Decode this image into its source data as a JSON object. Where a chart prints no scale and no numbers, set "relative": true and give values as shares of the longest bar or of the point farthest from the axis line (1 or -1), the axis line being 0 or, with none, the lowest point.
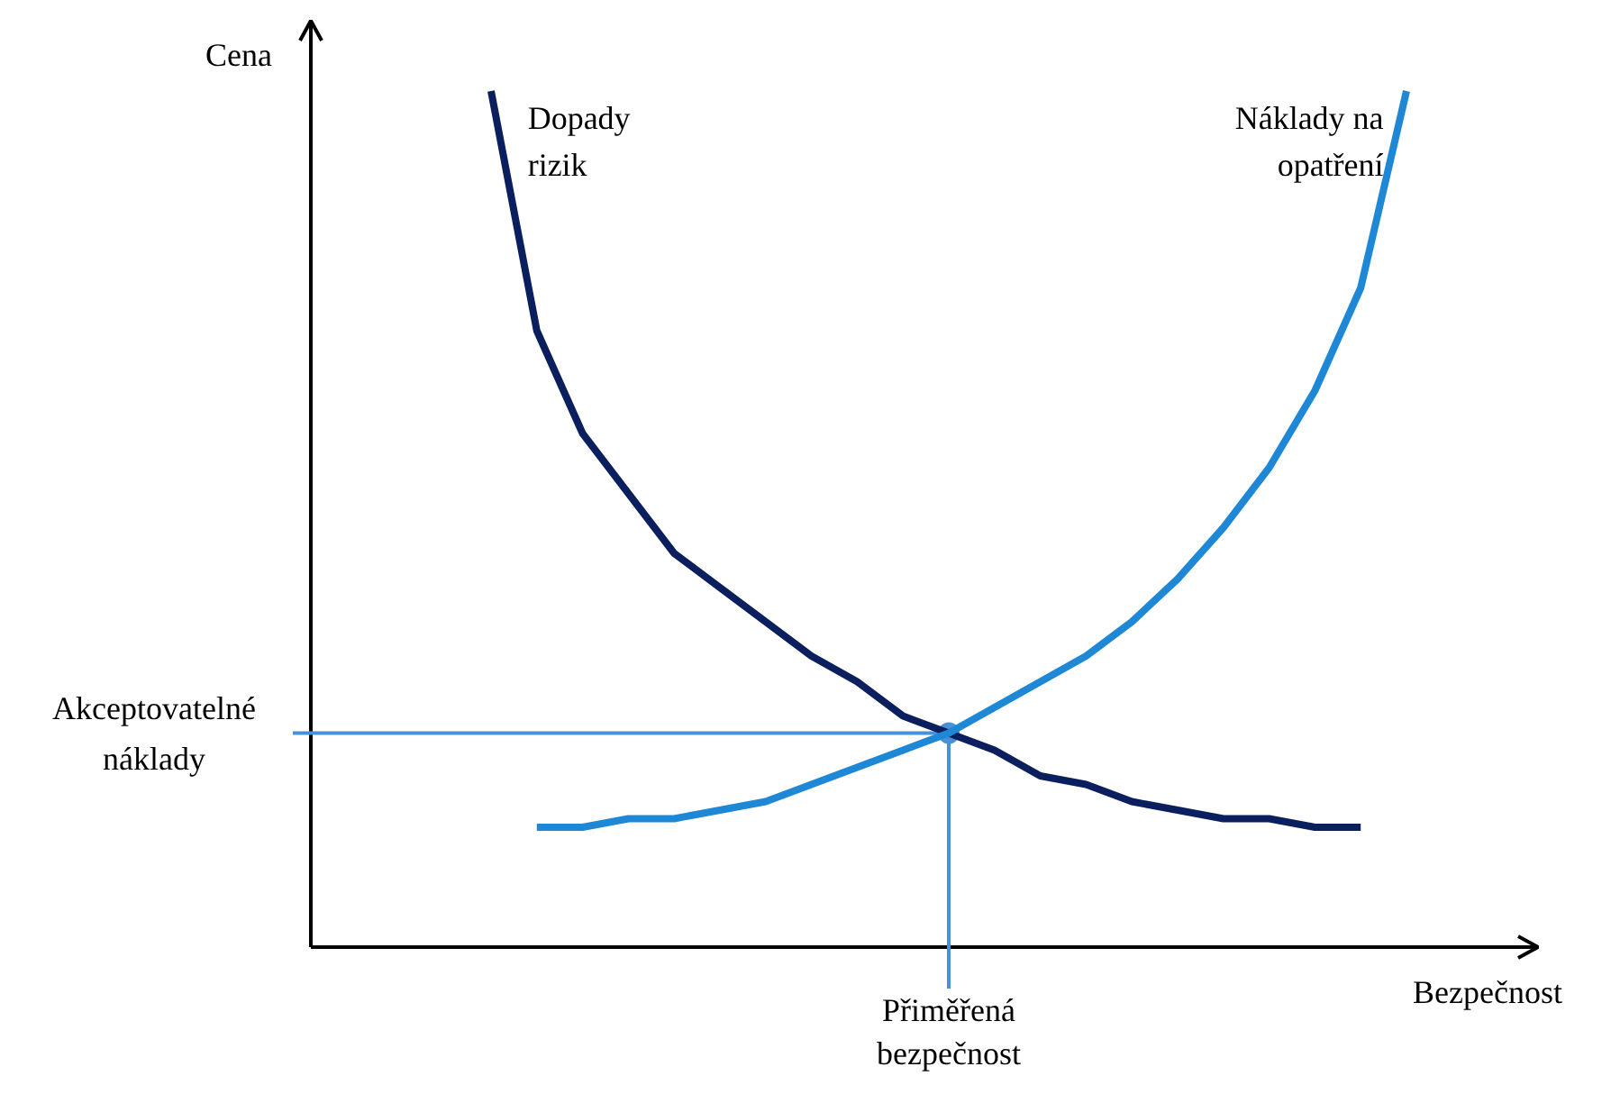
{
  "chart_data": {
    "type": "line",
    "relative": true,
    "categories": [
      null,
      null,
      null,
      null,
      null,
      null,
      null,
      null,
      null,
      null,
      null,
      null,
      null,
      null,
      null,
      null,
      null,
      null,
      null,
      null,
      null
    ],
    "series": [
      {
        "name": "Dopady\nrizik",
        "color": "#0b1f5e",
        "values": [
          1.0,
          0.72,
          0.6,
          0.53,
          0.46,
          0.42,
          0.38,
          0.34,
          0.31,
          0.27,
          0.25,
          0.23,
          0.2,
          0.19,
          0.17,
          0.16,
          0.15,
          0.15,
          0.14,
          0.14,
          null
        ]
      },
      {
        "name": "Náklady na\nopatření",
        "color": "#1e88d6",
        "values": [
          null,
          0.14,
          0.14,
          0.15,
          0.15,
          0.16,
          0.17,
          0.19,
          0.21,
          0.23,
          0.25,
          0.28,
          0.31,
          0.34,
          0.38,
          0.43,
          0.49,
          0.56,
          0.65,
          0.77,
          1.0
        ]
      }
    ],
    "ref_lines": [
      {
        "axis": "y",
        "value": 0.25,
        "label": "Akceptovatelné\nnáklady",
        "color": "#4a90d9"
      }
    ],
    "annotations": [
      "Cena",
      "Bezpečnost",
      "Přiměřená\nbezpečnost"
    ],
    "line_style": "solid",
    "marker": "none"
  }
}
